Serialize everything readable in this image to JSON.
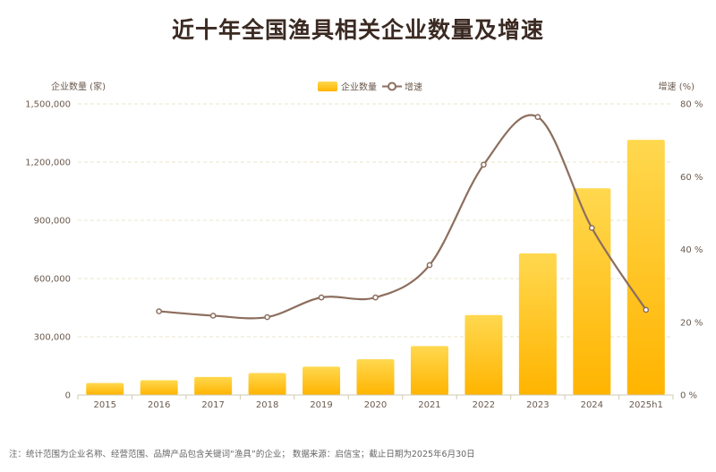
{
  "chart_data": {
    "type": "bar",
    "title": "近十年全国渔具相关企业数量及增速",
    "categories": [
      "2015",
      "2016",
      "2017",
      "2018",
      "2019",
      "2020",
      "2021",
      "2022",
      "2023",
      "2024",
      "2025h1"
    ],
    "series": [
      {
        "name": "企业数量",
        "type": "bar",
        "axis": "left",
        "values": [
          62000,
          76000,
          93000,
          113000,
          146000,
          184000,
          252000,
          412000,
          730000,
          1065000,
          1315000
        ]
      },
      {
        "name": "增速",
        "type": "line",
        "axis": "right",
        "values": [
          null,
          23.0,
          21.8,
          21.4,
          26.8,
          26.8,
          35.7,
          63.3,
          76.4,
          45.9,
          23.4
        ]
      }
    ],
    "ylabel_left": "企业数量 (家)",
    "ylabel_right": "增速 (%)",
    "ylim_left": [
      0,
      1500000
    ],
    "ylim_right": [
      0,
      80
    ],
    "yticks_left": [
      "0",
      "300,000",
      "600,000",
      "900,000",
      "1,200,000",
      "1,500,000"
    ],
    "yticks_right": [
      "0 %",
      "20 %",
      "40 %",
      "60 %",
      "80 %"
    ],
    "grid": true,
    "legend_position": "top-center",
    "colors": {
      "bar_top": "#ffd84f",
      "bar_bottom": "#ffb400",
      "line": "#8c6e5e",
      "grid": "#e8e4c8",
      "text": "#6b5a4e"
    }
  },
  "footnote": "注：统计范围为企业名称、经营范围、品牌产品包含关键词“渔具”的企业；  数据来源：启信宝；截止日期为2025年6月30日"
}
